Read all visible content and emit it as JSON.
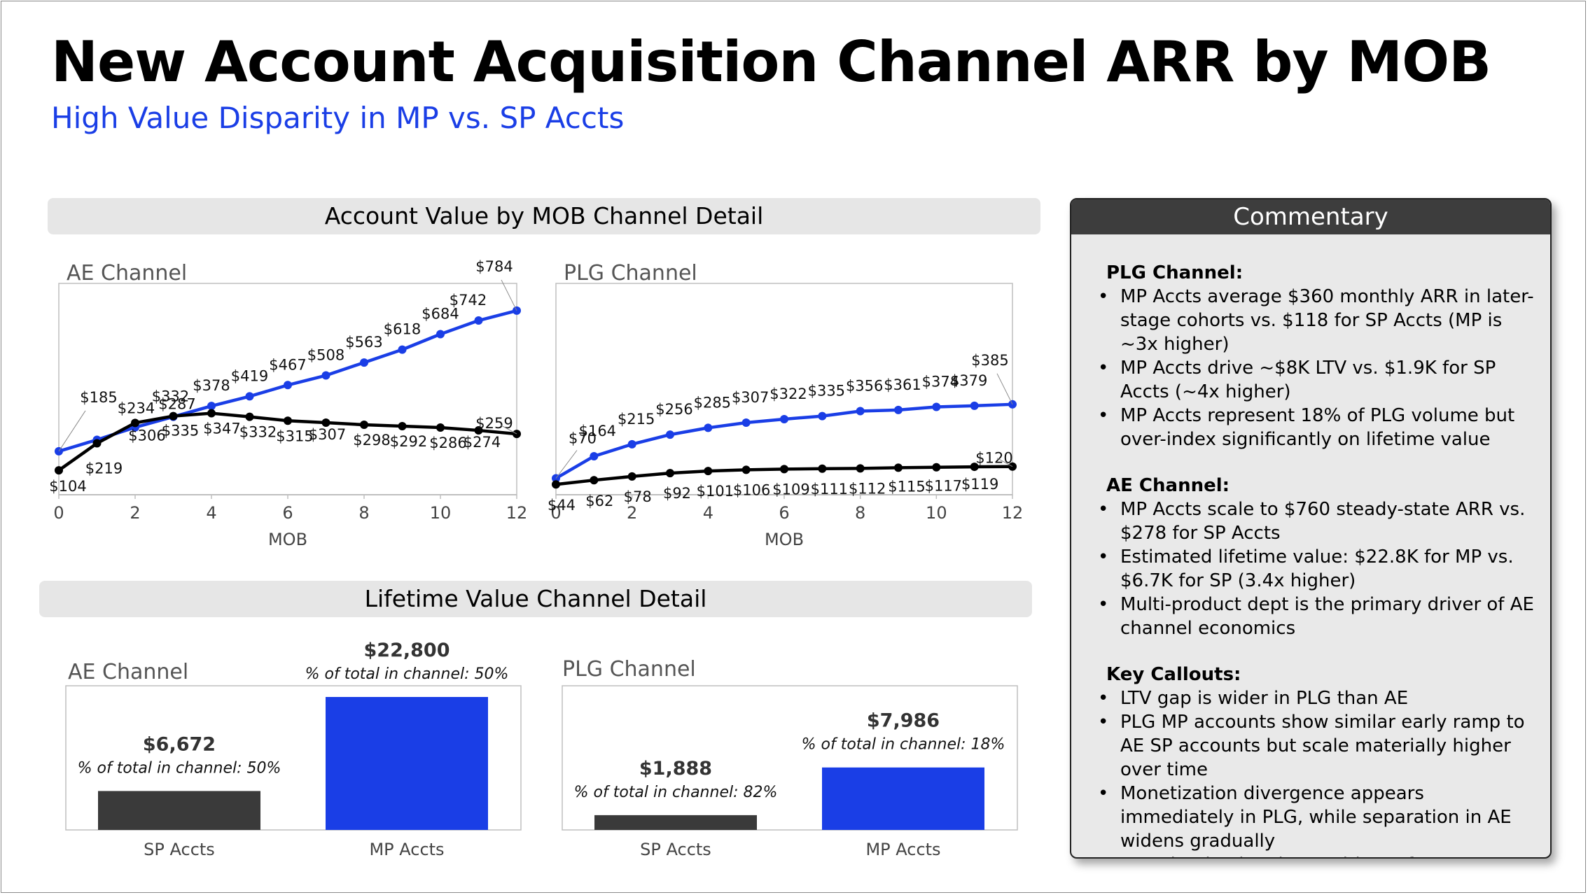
{
  "header": {
    "title": "New Account Acquisition Channel ARR by MOB",
    "subtitle": "High Value Disparity in MP vs. SP Accts"
  },
  "sections": {
    "mob_title": "Account Value by MOB Channel Detail",
    "ltv_title": "Lifetime Value Channel Detail"
  },
  "colors": {
    "mp": "#1a3ee6",
    "sp": "#000000",
    "sp_bar": "#3a3a3a"
  },
  "chart_data": [
    {
      "id": "ae_mob",
      "type": "line",
      "title": "AE Channel",
      "xlabel": "MOB",
      "xlim": [
        0,
        12
      ],
      "ylim": [
        0,
        900
      ],
      "x_ticks": [
        "0",
        "2",
        "4",
        "6",
        "8",
        "10",
        "12"
      ],
      "x": [
        0,
        1,
        2,
        3,
        4,
        5,
        6,
        7,
        8,
        9,
        10,
        11,
        12
      ],
      "series": [
        {
          "key": "mp",
          "values": [
            185,
            234,
            287,
            332,
            378,
            419,
            467,
            508,
            563,
            618,
            684,
            742,
            784
          ],
          "labels": [
            "$185",
            "$234",
            "$287",
            "$332",
            "$378",
            "$419",
            "$467",
            "$508",
            "$563",
            "$618",
            "$684",
            "$742",
            "$784"
          ]
        },
        {
          "key": "sp",
          "values": [
            104,
            219,
            306,
            335,
            347,
            332,
            315,
            307,
            298,
            292,
            286,
            274,
            259
          ],
          "labels": [
            "$104",
            "$219",
            "$306",
            "$335",
            "$347",
            "$332",
            "$315",
            "$307",
            "$298",
            "$292",
            "$286",
            "$274",
            "$259"
          ]
        }
      ]
    },
    {
      "id": "plg_mob",
      "type": "line",
      "title": "PLG Channel",
      "xlabel": "MOB",
      "xlim": [
        0,
        12
      ],
      "ylim": [
        0,
        900
      ],
      "x_ticks": [
        "0",
        "2",
        "4",
        "6",
        "8",
        "10",
        "12"
      ],
      "x": [
        0,
        1,
        2,
        3,
        4,
        5,
        6,
        7,
        8,
        9,
        10,
        11,
        12
      ],
      "series": [
        {
          "key": "mp",
          "values": [
            70,
            164,
            215,
            256,
            285,
            307,
            322,
            335,
            356,
            361,
            374,
            379,
            385
          ],
          "labels": [
            "$70",
            "$164",
            "$215",
            "$256",
            "$285",
            "$307",
            "$322",
            "$335",
            "$356",
            "$361",
            "$374",
            "$379",
            "$385"
          ]
        },
        {
          "key": "sp",
          "values": [
            44,
            62,
            78,
            92,
            101,
            106,
            109,
            111,
            112,
            115,
            117,
            119,
            120
          ],
          "labels": [
            "$44",
            "$62",
            "$78",
            "$92",
            "$101",
            "$106",
            "$109",
            "$111",
            "$112",
            "$115",
            "$117",
            "$119",
            "$120"
          ]
        }
      ]
    },
    {
      "id": "ae_ltv",
      "type": "bar",
      "title": "AE Channel",
      "categories": [
        "SP Accts",
        "MP Accts"
      ],
      "values": [
        6672,
        22800
      ],
      "value_labels": [
        "$6,672",
        "$22,800"
      ],
      "pct_labels": [
        "% of total in channel: 50%",
        "% of total in channel: 50%"
      ],
      "ylim": [
        0,
        22800
      ]
    },
    {
      "id": "plg_ltv",
      "type": "bar",
      "title": "PLG Channel",
      "categories": [
        "SP Accts",
        "MP Accts"
      ],
      "values": [
        1888,
        7986
      ],
      "value_labels": [
        "$1,888",
        "$7,986"
      ],
      "pct_labels": [
        "% of total in channel: 82%",
        "% of total in channel: 18%"
      ],
      "ylim": [
        0,
        17000
      ]
    }
  ],
  "commentary": {
    "title": "Commentary",
    "sections": [
      {
        "title": "PLG Channel:",
        "bullets": [
          "MP Accts average $360 monthly ARR in later-stage cohorts vs. $118 for SP Accts (MP is ~3x higher)",
          "MP Accts drive ~$8K LTV vs. $1.9K for SP Accts (~4x higher)",
          "MP Accts represent 18% of PLG volume but over-index significantly on lifetime value"
        ]
      },
      {
        "title": "AE Channel:",
        "bullets": [
          "MP Accts scale to $760 steady-state ARR vs. $278 for SP Accts",
          "Estimated lifetime value:  $22.8K for MP vs. $6.7K for SP (3.4x higher)",
          "Multi-product dept is the primary driver of AE channel economics"
        ]
      },
      {
        "title": "Key Callouts:",
        "bullets": [
          "LTV gap is wider in PLG than AE",
          "PLG MP accounts show similar early ramp to AE SP accounts but scale materially higher over time",
          "Monetization divergence appears immediately in PLG, while separation in AE widens gradually",
          "MP adoption is primary driver of customer value across AE and PLG channels"
        ]
      }
    ]
  }
}
